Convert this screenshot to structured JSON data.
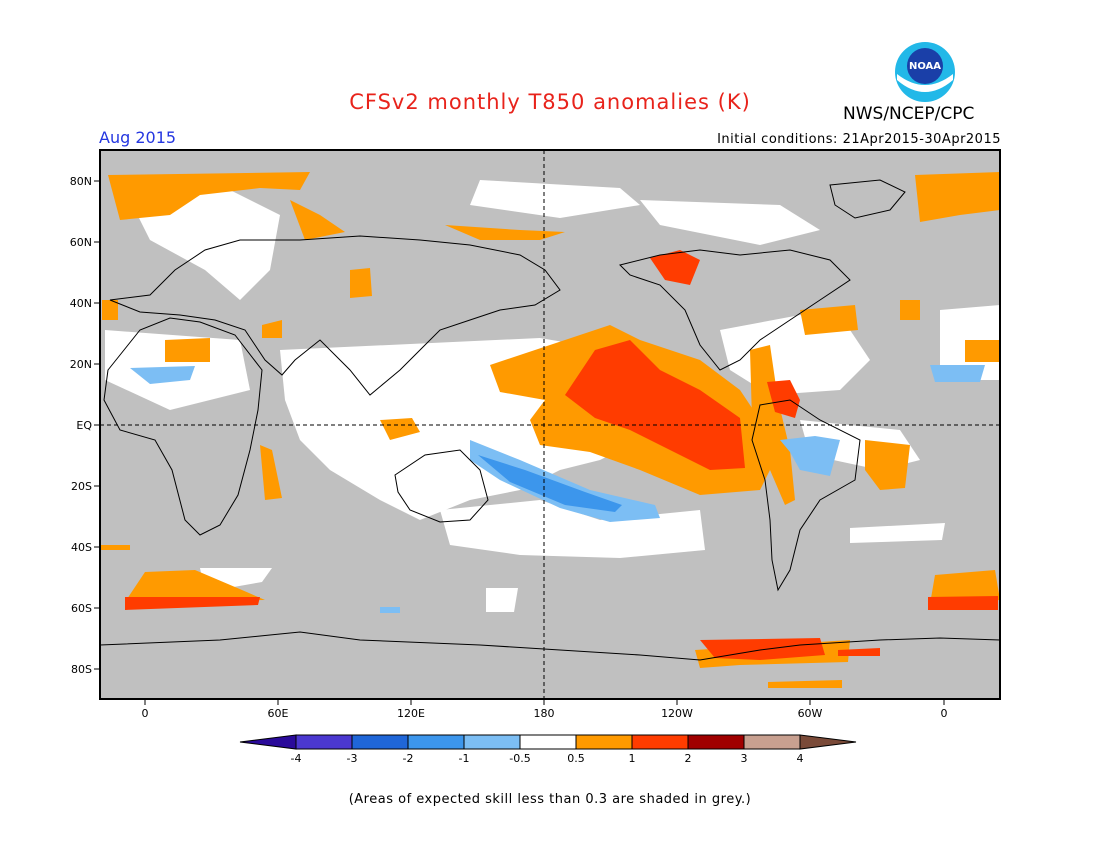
{
  "header": {
    "title": "CFSv2 monthly T850 anomalies (K)",
    "agency": "NWS/NCEP/CPC",
    "logo_text": "NOAA",
    "valid_month": "Aug 2015",
    "initial_conditions": "Initial conditions: 21Apr2015-30Apr2015"
  },
  "map": {
    "lon_ticks": [
      "0",
      "60E",
      "120E",
      "180",
      "120W",
      "60W",
      "0"
    ],
    "lat_ticks": [
      "80N",
      "60N",
      "40N",
      "20N",
      "EQ",
      "20S",
      "40S",
      "60S",
      "80S"
    ],
    "reference_lines": [
      "EQ",
      "180"
    ],
    "colors": {
      "low_skill": "#c0c0c0",
      "neutral": "#ffffff",
      "land_outline": "#000000"
    }
  },
  "legend": {
    "labels": [
      "-4",
      "-3",
      "-2",
      "-1",
      "-0.5",
      "0.5",
      "1",
      "2",
      "3",
      "4"
    ],
    "colors": [
      "#2a0a9a",
      "#4b38d0",
      "#1f66d8",
      "#3c96ec",
      "#7cbef4",
      "#ffffff",
      "#ff9a00",
      "#ff3c00",
      "#a00000",
      "#c8a090",
      "#7a4a38"
    ]
  },
  "footnote": "(Areas of expected skill less than 0.3 are shaded in grey.)"
}
